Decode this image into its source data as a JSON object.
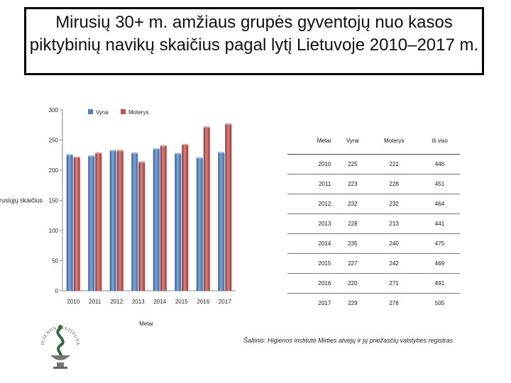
{
  "title": "Mirusių 30+ m. amžiaus grupės gyventojų nuo kasos piktybinių navikų skaičius pagal lytį Lietuvoje 2010–2017 m.",
  "chart_data": {
    "type": "bar",
    "categories": [
      "2010",
      "2011",
      "2012",
      "2013",
      "2014",
      "2015",
      "2016",
      "2017"
    ],
    "series": [
      {
        "name": "Vyrai",
        "values": [
          225,
          223,
          232,
          228,
          235,
          227,
          220,
          229
        ],
        "color": "#4f81bd"
      },
      {
        "name": "Moterys",
        "values": [
          221,
          228,
          232,
          213,
          240,
          242,
          271,
          276
        ],
        "color": "#c0504d"
      }
    ],
    "xlabel": "Metai",
    "ylabel": "Mirusiųjų skaičius",
    "ylim": [
      0,
      300
    ],
    "yticks": [
      0,
      50,
      100,
      150,
      200,
      250,
      300
    ],
    "legend": "top",
    "grid": false
  },
  "table": {
    "headers": [
      "Metai",
      "Vyrai",
      "Moterys",
      "Iš viso"
    ],
    "rows": [
      [
        "2010",
        "225",
        "221",
        "446"
      ],
      [
        "2011",
        "223",
        "228",
        "451"
      ],
      [
        "2012",
        "232",
        "232",
        "464"
      ],
      [
        "2013",
        "228",
        "213",
        "441"
      ],
      [
        "2014",
        "235",
        "240",
        "475"
      ],
      [
        "2015",
        "227",
        "242",
        "469"
      ],
      [
        "2016",
        "220",
        "271",
        "491"
      ],
      [
        "2017",
        "229",
        "276",
        "505"
      ]
    ]
  },
  "source": "Šaltinis: Higienos instituto Mirties atvejų ir jų priežasčių valstybės registras",
  "logo_text": "HIGIENOS INSTITUTAS"
}
